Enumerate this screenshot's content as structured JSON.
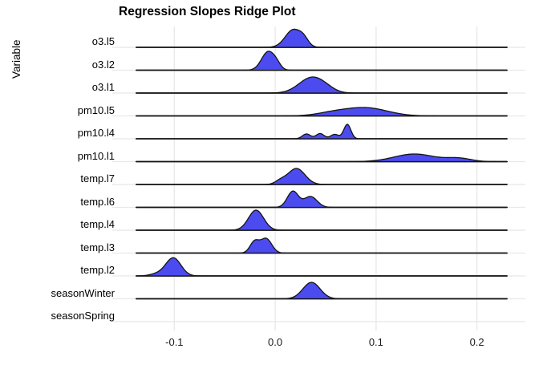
{
  "title": "Regression Slopes Ridge Plot",
  "y_axis_label": "Variable",
  "colors": {
    "ridge_fill": "#4B4BF0",
    "ridge_stroke": "#141414",
    "baseline": "#1A1A1A",
    "gridline": "#E8E8E8",
    "title_text": "#000000",
    "tick_text": "#1a1a1a"
  },
  "chart_data": {
    "type": "ridgeline",
    "title": "Regression Slopes Ridge Plot",
    "xlabel": "",
    "ylabel": "Variable",
    "xlim": [
      -0.1615,
      0.248
    ],
    "baseline_span": [
      -0.138,
      0.23
    ],
    "grid": true,
    "x_ticks": [
      {
        "value": -0.1,
        "label": "-0.1"
      },
      {
        "value": 0.0,
        "label": "0.0"
      },
      {
        "value": 0.1,
        "label": "0.1"
      },
      {
        "value": 0.2,
        "label": "0.2"
      }
    ],
    "rows": [
      {
        "label": "o3.l5",
        "baseline": true,
        "peak_x": 0.019,
        "components": [
          {
            "mu": 0.018,
            "sigma": 0.008,
            "amp": 22
          },
          {
            "mu": 0.0285,
            "sigma": 0.0045,
            "amp": 7
          }
        ]
      },
      {
        "label": "o3.l2",
        "baseline": true,
        "peak_x": -0.006,
        "components": [
          {
            "mu": -0.007,
            "sigma": 0.0065,
            "amp": 23
          },
          {
            "mu": 0.0015,
            "sigma": 0.004,
            "amp": 5
          }
        ]
      },
      {
        "label": "o3.l1",
        "baseline": true,
        "peak_x": 0.036,
        "components": [
          {
            "mu": 0.036,
            "sigma": 0.0125,
            "amp": 19
          },
          {
            "mu": 0.05,
            "sigma": 0.009,
            "amp": 3
          }
        ]
      },
      {
        "label": "pm10.l5",
        "baseline": true,
        "peak_x": 0.088,
        "components": [
          {
            "mu": 0.09,
            "sigma": 0.021,
            "amp": 10
          },
          {
            "mu": 0.057,
            "sigma": 0.016,
            "amp": 3.5
          }
        ]
      },
      {
        "label": "pm10.l4",
        "baseline": true,
        "peak_x": 0.0715,
        "components": [
          {
            "mu": 0.031,
            "sigma": 0.004,
            "amp": 6
          },
          {
            "mu": 0.0445,
            "sigma": 0.004,
            "amp": 6.5
          },
          {
            "mu": 0.059,
            "sigma": 0.004,
            "amp": 5.5
          },
          {
            "mu": 0.0715,
            "sigma": 0.0035,
            "amp": 18
          }
        ]
      },
      {
        "label": "pm10.l1",
        "baseline": true,
        "peak_x": 0.143,
        "components": [
          {
            "mu": 0.138,
            "sigma": 0.02,
            "amp": 9.5
          },
          {
            "mu": 0.182,
            "sigma": 0.012,
            "amp": 4
          }
        ]
      },
      {
        "label": "temp.l7",
        "baseline": true,
        "peak_x": 0.021,
        "components": [
          {
            "mu": 0.021,
            "sigma": 0.0085,
            "amp": 20
          },
          {
            "mu": 0.005,
            "sigma": 0.005,
            "amp": 4
          }
        ]
      },
      {
        "label": "temp.l6",
        "baseline": true,
        "peak_x": 0.0175,
        "components": [
          {
            "mu": 0.0175,
            "sigma": 0.0055,
            "amp": 20
          },
          {
            "mu": 0.035,
            "sigma": 0.0065,
            "amp": 13.5
          }
        ]
      },
      {
        "label": "temp.l4",
        "baseline": true,
        "peak_x": -0.019,
        "components": [
          {
            "mu": -0.019,
            "sigma": 0.0075,
            "amp": 25
          }
        ]
      },
      {
        "label": "temp.l3",
        "baseline": true,
        "peak_x": -0.009,
        "components": [
          {
            "mu": -0.0205,
            "sigma": 0.0045,
            "amp": 14
          },
          {
            "mu": -0.009,
            "sigma": 0.0055,
            "amp": 18
          }
        ]
      },
      {
        "label": "temp.l2",
        "baseline": true,
        "peak_x": -0.101,
        "components": [
          {
            "mu": -0.101,
            "sigma": 0.0075,
            "amp": 22.5
          },
          {
            "mu": -0.117,
            "sigma": 0.007,
            "amp": 2.5
          }
        ]
      },
      {
        "label": "seasonWinter",
        "baseline": true,
        "peak_x": 0.036,
        "components": [
          {
            "mu": 0.036,
            "sigma": 0.0085,
            "amp": 20.5
          }
        ]
      },
      {
        "label": "seasonSpring",
        "baseline": false,
        "peak_x": null,
        "components": []
      }
    ]
  }
}
